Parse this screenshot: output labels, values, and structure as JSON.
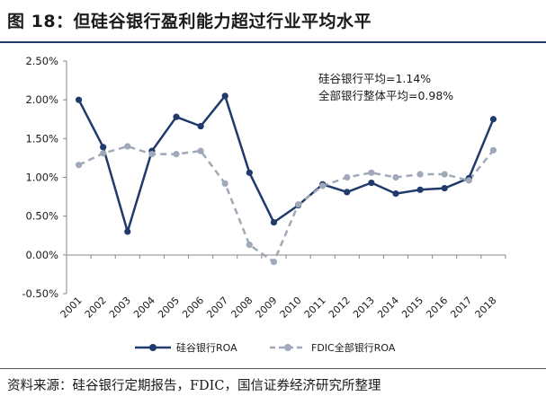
{
  "figure": {
    "title": "图 18：但硅谷银行盈利能力超过行业平均水平",
    "source": "资料来源：硅谷银行定期报告，FDIC，国信证券经济研究所整理"
  },
  "chart_data": {
    "type": "line",
    "x": [
      "2001",
      "2002",
      "2003",
      "2004",
      "2005",
      "2006",
      "2007",
      "2008",
      "2009",
      "2010",
      "2011",
      "2012",
      "2013",
      "2014",
      "2015",
      "2016",
      "2017",
      "2018"
    ],
    "series": [
      {
        "name": "硅谷银行ROA",
        "color": "#1f3a6b",
        "style": "solid",
        "values": [
          2.0,
          1.39,
          0.3,
          1.34,
          1.78,
          1.66,
          2.05,
          1.06,
          0.42,
          0.64,
          0.91,
          0.81,
          0.93,
          0.79,
          0.84,
          0.86,
          0.99,
          1.75
        ]
      },
      {
        "name": "FDIC全部银行ROA",
        "color": "#9fa9b8",
        "style": "dashed",
        "values": [
          1.16,
          1.31,
          1.4,
          1.3,
          1.3,
          1.34,
          0.92,
          0.13,
          -0.09,
          0.65,
          0.89,
          1.0,
          1.06,
          1.0,
          1.04,
          1.04,
          0.96,
          1.35
        ]
      }
    ],
    "ylim": [
      -0.5,
      2.5
    ],
    "yticks": [
      "-0.50%",
      "0.00%",
      "0.50%",
      "1.00%",
      "1.50%",
      "2.00%",
      "2.50%"
    ],
    "annotations": [
      "硅谷银行平均=1.14%",
      "全部银行整体平均=0.98%"
    ],
    "legend_position": "bottom",
    "grid": false
  }
}
